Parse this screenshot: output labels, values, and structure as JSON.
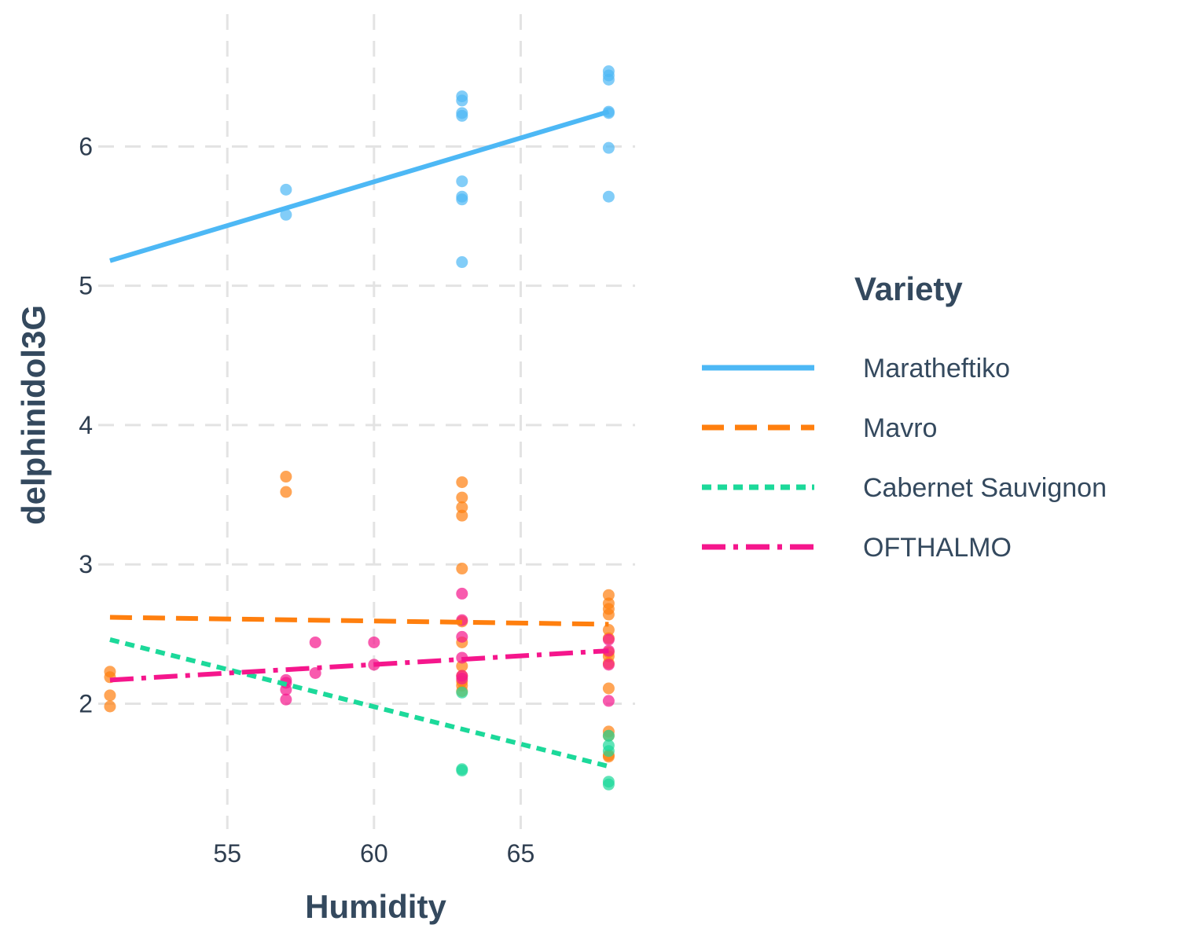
{
  "chart_data": {
    "type": "scatter",
    "xlabel": "Humidity",
    "ylabel": "delphinidol3G",
    "xlim": [
      50.6,
      68.9
    ],
    "ylim": [
      1.1,
      6.95
    ],
    "xticks": [
      55,
      60,
      65
    ],
    "yticks": [
      2,
      3,
      4,
      5,
      6
    ],
    "grid": true,
    "legend": {
      "title": "Variety",
      "position": "right"
    },
    "series": [
      {
        "name": "Maratheftiko",
        "color": "#4db8f5",
        "dash": "solid",
        "trend": [
          [
            51,
            5.18
          ],
          [
            68,
            6.25
          ]
        ],
        "points": [
          [
            57,
            5.69
          ],
          [
            57,
            5.51
          ],
          [
            63,
            6.36
          ],
          [
            63,
            6.33
          ],
          [
            63,
            6.24
          ],
          [
            63,
            6.22
          ],
          [
            63,
            5.75
          ],
          [
            63,
            5.64
          ],
          [
            63,
            5.62
          ],
          [
            63,
            5.17
          ],
          [
            68,
            6.54
          ],
          [
            68,
            6.51
          ],
          [
            68,
            6.48
          ],
          [
            68,
            6.25
          ],
          [
            68,
            6.24
          ],
          [
            68,
            5.99
          ],
          [
            68,
            5.64
          ]
        ]
      },
      {
        "name": "Mavro",
        "color": "#ff7f0e",
        "dash": "long-dash",
        "trend": [
          [
            51,
            2.62
          ],
          [
            68,
            2.57
          ]
        ],
        "points": [
          [
            51,
            2.23
          ],
          [
            51,
            2.19
          ],
          [
            51,
            2.06
          ],
          [
            51,
            1.98
          ],
          [
            57,
            3.63
          ],
          [
            57,
            3.52
          ],
          [
            63,
            3.59
          ],
          [
            63,
            3.48
          ],
          [
            63,
            3.41
          ],
          [
            63,
            3.35
          ],
          [
            63,
            2.97
          ],
          [
            63,
            2.59
          ],
          [
            63,
            2.44
          ],
          [
            63,
            2.27
          ],
          [
            63,
            2.2
          ],
          [
            63,
            2.16
          ],
          [
            63,
            2.13
          ],
          [
            63,
            2.09
          ],
          [
            68,
            2.78
          ],
          [
            68,
            2.72
          ],
          [
            68,
            2.68
          ],
          [
            68,
            2.64
          ],
          [
            68,
            2.53
          ],
          [
            68,
            2.47
          ],
          [
            68,
            2.37
          ],
          [
            68,
            2.34
          ],
          [
            68,
            2.29
          ],
          [
            68,
            2.11
          ],
          [
            68,
            1.8
          ],
          [
            68,
            1.77
          ],
          [
            68,
            1.63
          ],
          [
            68,
            1.62
          ]
        ]
      },
      {
        "name": "Cabernet Sauvignon",
        "color": "#1cd99a",
        "dash": "short-dash",
        "trend": [
          [
            51,
            2.46
          ],
          [
            68,
            1.55
          ]
        ],
        "points": [
          [
            63,
            2.08
          ],
          [
            63,
            1.53
          ],
          [
            63,
            1.52
          ],
          [
            68,
            1.77
          ],
          [
            68,
            1.7
          ],
          [
            68,
            1.66
          ],
          [
            68,
            1.44
          ],
          [
            68,
            1.42
          ]
        ]
      },
      {
        "name": "OFTHALMO",
        "color": "#f5168c",
        "dash": "dash-dot",
        "trend": [
          [
            51,
            2.17
          ],
          [
            68,
            2.38
          ]
        ],
        "points": [
          [
            57,
            2.17
          ],
          [
            57,
            2.15
          ],
          [
            57,
            2.1
          ],
          [
            57,
            2.03
          ],
          [
            58,
            2.44
          ],
          [
            58,
            2.22
          ],
          [
            60,
            2.44
          ],
          [
            60,
            2.28
          ],
          [
            63,
            2.79
          ],
          [
            63,
            2.6
          ],
          [
            63,
            2.48
          ],
          [
            63,
            2.33
          ],
          [
            63,
            2.2
          ],
          [
            63,
            2.18
          ],
          [
            68,
            2.46
          ],
          [
            68,
            2.38
          ],
          [
            68,
            2.28
          ],
          [
            68,
            2.02
          ]
        ]
      }
    ]
  }
}
